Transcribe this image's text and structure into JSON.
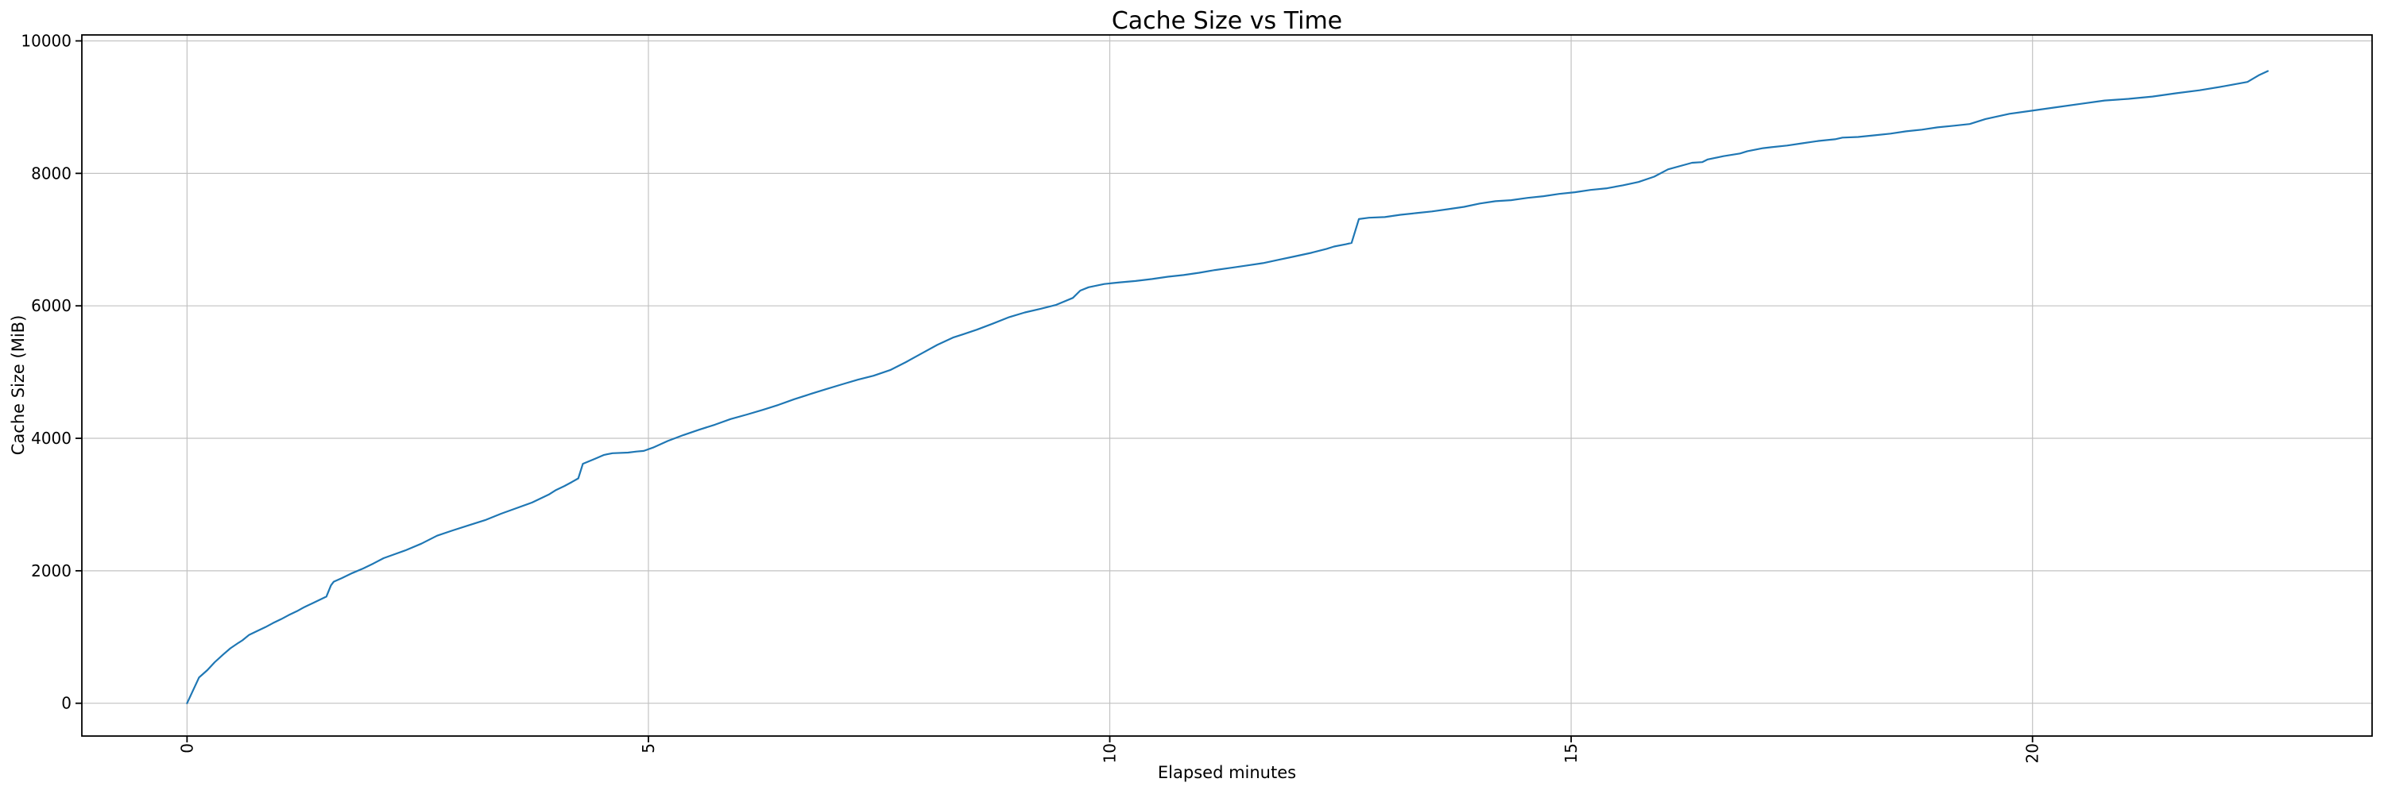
{
  "figure": {
    "title": "Cache Size vs Time"
  },
  "chart_data": {
    "type": "line",
    "title": "Cache Size vs Time",
    "xlabel": "Elapsed minutes",
    "ylabel": "Cache Size (MiB)",
    "xlim": [
      -1.14,
      23.68
    ],
    "ylim": [
      -495,
      10090
    ],
    "xticks": [
      0,
      5,
      10,
      15,
      20
    ],
    "xtick_labels": [
      "0",
      "5",
      "10",
      "15",
      "20"
    ],
    "ytick_labels": [
      "0",
      "2000",
      "4000",
      "6000",
      "8000",
      "10000"
    ],
    "yticks": [
      0,
      2000,
      4000,
      6000,
      8000,
      10000
    ],
    "xtick_rotation": "vertical",
    "grid": true,
    "grid_color": "#c2c2c2",
    "line_color": "#1f77b4",
    "spine_color": "#000000",
    "legend": "none",
    "series": [
      {
        "name": "Cache Size",
        "points": [
          [
            0,
            0
          ],
          [
            0.05,
            150
          ],
          [
            0.13,
            390
          ],
          [
            0.22,
            500
          ],
          [
            0.3,
            620
          ],
          [
            0.39,
            735
          ],
          [
            0.47,
            830
          ],
          [
            0.56,
            915
          ],
          [
            0.6,
            950
          ],
          [
            0.67,
            1030
          ],
          [
            0.76,
            1090
          ],
          [
            0.85,
            1150
          ],
          [
            0.93,
            1210
          ],
          [
            1.02,
            1270
          ],
          [
            1.1,
            1330
          ],
          [
            1.19,
            1390
          ],
          [
            1.27,
            1450
          ],
          [
            1.36,
            1510
          ],
          [
            1.45,
            1570
          ],
          [
            1.51,
            1610
          ],
          [
            1.56,
            1780
          ],
          [
            1.59,
            1835
          ],
          [
            1.68,
            1890
          ],
          [
            1.79,
            1965
          ],
          [
            1.91,
            2035
          ],
          [
            2.02,
            2110
          ],
          [
            2.13,
            2190
          ],
          [
            2.25,
            2250
          ],
          [
            2.37,
            2310
          ],
          [
            2.54,
            2410
          ],
          [
            2.71,
            2530
          ],
          [
            2.88,
            2610
          ],
          [
            3.05,
            2685
          ],
          [
            3.23,
            2765
          ],
          [
            3.4,
            2860
          ],
          [
            3.57,
            2945
          ],
          [
            3.74,
            3030
          ],
          [
            3.92,
            3150
          ],
          [
            4,
            3220
          ],
          [
            4.09,
            3280
          ],
          [
            4.17,
            3340
          ],
          [
            4.24,
            3395
          ],
          [
            4.29,
            3615
          ],
          [
            4.42,
            3690
          ],
          [
            4.52,
            3750
          ],
          [
            4.61,
            3775
          ],
          [
            4.78,
            3785
          ],
          [
            4.87,
            3800
          ],
          [
            4.95,
            3810
          ],
          [
            5.05,
            3860
          ],
          [
            5.21,
            3960
          ],
          [
            5.38,
            4050
          ],
          [
            5.55,
            4130
          ],
          [
            5.72,
            4205
          ],
          [
            5.89,
            4290
          ],
          [
            6.07,
            4360
          ],
          [
            6.24,
            4430
          ],
          [
            6.41,
            4505
          ],
          [
            6.58,
            4590
          ],
          [
            6.76,
            4670
          ],
          [
            6.93,
            4745
          ],
          [
            7.1,
            4815
          ],
          [
            7.27,
            4885
          ],
          [
            7.44,
            4945
          ],
          [
            7.62,
            5030
          ],
          [
            7.79,
            5150
          ],
          [
            7.96,
            5280
          ],
          [
            8.13,
            5410
          ],
          [
            8.3,
            5520
          ],
          [
            8.41,
            5570
          ],
          [
            8.56,
            5640
          ],
          [
            8.73,
            5730
          ],
          [
            8.91,
            5830
          ],
          [
            9.08,
            5900
          ],
          [
            9.25,
            5955
          ],
          [
            9.42,
            6015
          ],
          [
            9.6,
            6120
          ],
          [
            9.68,
            6230
          ],
          [
            9.77,
            6280
          ],
          [
            9.94,
            6330
          ],
          [
            10.11,
            6355
          ],
          [
            10.28,
            6375
          ],
          [
            10.46,
            6405
          ],
          [
            10.63,
            6440
          ],
          [
            10.8,
            6465
          ],
          [
            10.97,
            6500
          ],
          [
            11.14,
            6540
          ],
          [
            11.32,
            6575
          ],
          [
            11.49,
            6610
          ],
          [
            11.66,
            6645
          ],
          [
            11.83,
            6695
          ],
          [
            12,
            6745
          ],
          [
            12.18,
            6800
          ],
          [
            12.35,
            6860
          ],
          [
            12.43,
            6895
          ],
          [
            12.56,
            6930
          ],
          [
            12.62,
            6950
          ],
          [
            12.7,
            7310
          ],
          [
            12.81,
            7330
          ],
          [
            12.98,
            7340
          ],
          [
            13.15,
            7375
          ],
          [
            13.32,
            7400
          ],
          [
            13.49,
            7425
          ],
          [
            13.67,
            7460
          ],
          [
            13.84,
            7495
          ],
          [
            14.01,
            7545
          ],
          [
            14.18,
            7580
          ],
          [
            14.35,
            7595
          ],
          [
            14.53,
            7630
          ],
          [
            14.7,
            7655
          ],
          [
            14.87,
            7690
          ],
          [
            15.04,
            7715
          ],
          [
            15.21,
            7750
          ],
          [
            15.39,
            7775
          ],
          [
            15.56,
            7820
          ],
          [
            15.73,
            7870
          ],
          [
            15.9,
            7950
          ],
          [
            16.05,
            8060
          ],
          [
            16.31,
            8160
          ],
          [
            16.42,
            8170
          ],
          [
            16.48,
            8210
          ],
          [
            16.65,
            8260
          ],
          [
            16.83,
            8300
          ],
          [
            16.91,
            8335
          ],
          [
            17.08,
            8380
          ],
          [
            17.17,
            8395
          ],
          [
            17.34,
            8420
          ],
          [
            17.51,
            8455
          ],
          [
            17.68,
            8490
          ],
          [
            17.86,
            8515
          ],
          [
            17.94,
            8540
          ],
          [
            18.11,
            8550
          ],
          [
            18.29,
            8575
          ],
          [
            18.46,
            8600
          ],
          [
            18.63,
            8635
          ],
          [
            18.8,
            8660
          ],
          [
            18.97,
            8695
          ],
          [
            19.15,
            8720
          ],
          [
            19.32,
            8745
          ],
          [
            19.49,
            8820
          ],
          [
            19.75,
            8900
          ],
          [
            20.01,
            8950
          ],
          [
            20.27,
            9000
          ],
          [
            20.52,
            9050
          ],
          [
            20.78,
            9100
          ],
          [
            21.04,
            9125
          ],
          [
            21.3,
            9160
          ],
          [
            21.56,
            9210
          ],
          [
            21.81,
            9255
          ],
          [
            22.07,
            9315
          ],
          [
            22.33,
            9380
          ],
          [
            22.45,
            9480
          ],
          [
            22.55,
            9545
          ]
        ]
      }
    ]
  }
}
